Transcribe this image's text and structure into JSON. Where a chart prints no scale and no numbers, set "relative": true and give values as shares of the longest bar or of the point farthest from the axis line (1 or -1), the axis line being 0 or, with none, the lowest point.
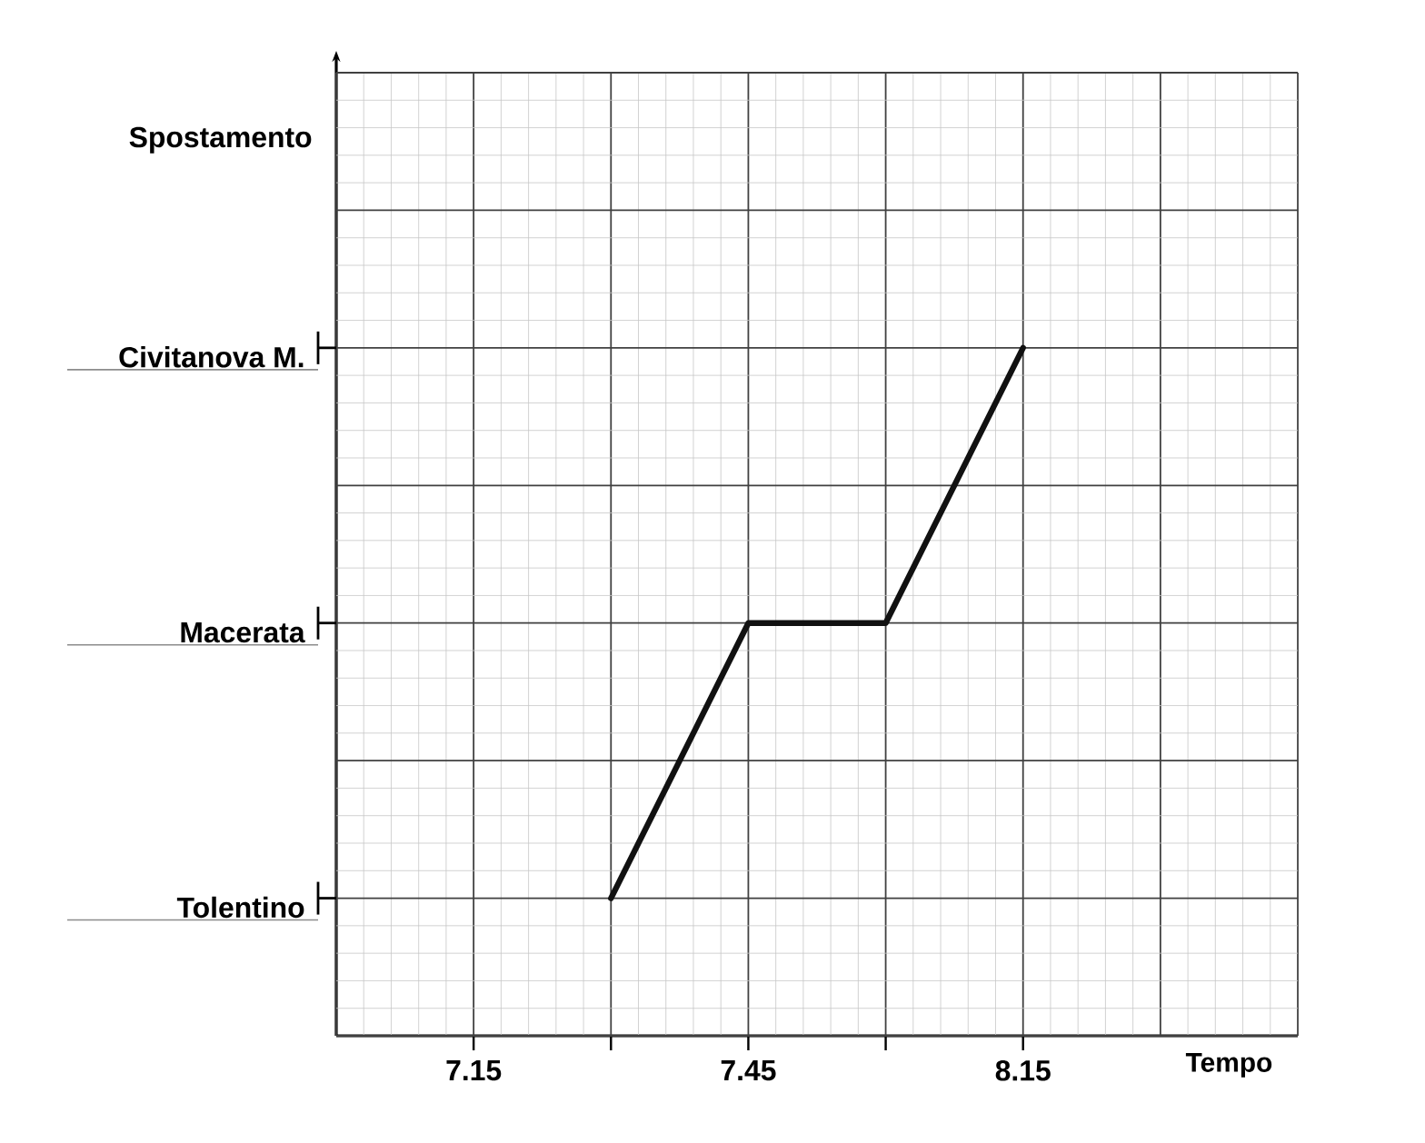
{
  "chart_data": {
    "type": "line",
    "xlabel": "Tempo",
    "categories": [
      null,
      "7.15",
      null,
      "7.45",
      null,
      "8.15",
      null,
      null
    ],
    "values": [
      null,
      null,
      0.2,
      0.6,
      0.6,
      1,
      null,
      null
    ],
    "relative": true,
    "color": "#111111",
    "annotations": [
      "Tolentino",
      "Macerata",
      "Civitanova M.",
      "Spostamento"
    ],
    "grid": true,
    "marker": "none",
    "line_style": "solid"
  }
}
